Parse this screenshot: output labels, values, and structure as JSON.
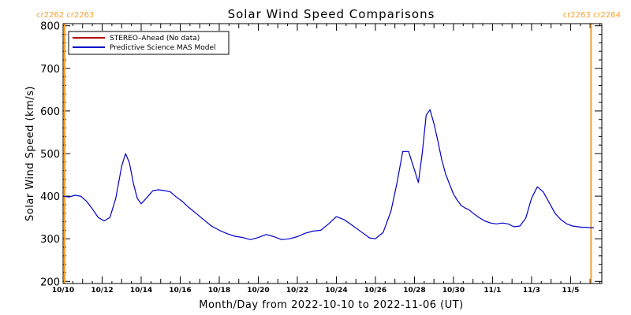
{
  "chart_data": {
    "type": "line",
    "title": "Solar Wind Speed Comparisons",
    "xlabel": "Month/Day from 2022-10-10 to 2022-11-06 (UT)",
    "ylabel": "Solar Wind Speed (km/s)",
    "xlim": [
      0,
      27.6
    ],
    "ylim": [
      195,
      805
    ],
    "yticks": [
      200,
      300,
      400,
      500,
      600,
      700,
      800
    ],
    "xticks": [
      {
        "x": 0,
        "label": "10/10"
      },
      {
        "x": 2,
        "label": "10/12"
      },
      {
        "x": 4,
        "label": "10/14"
      },
      {
        "x": 6,
        "label": "10/16"
      },
      {
        "x": 8,
        "label": "10/18"
      },
      {
        "x": 10,
        "label": "10/20"
      },
      {
        "x": 12,
        "label": "10/22"
      },
      {
        "x": 14,
        "label": "10/24"
      },
      {
        "x": 16,
        "label": "10/26"
      },
      {
        "x": 18,
        "label": "10/28"
      },
      {
        "x": 20,
        "label": "10/30"
      },
      {
        "x": 22,
        "label": "11/1"
      },
      {
        "x": 24,
        "label": "11/3"
      },
      {
        "x": 26,
        "label": "11/5"
      }
    ],
    "colors": {
      "stereo": "#b40000",
      "mas": "#0000c8",
      "carrington": "#f5a030"
    },
    "legend": {
      "position": "top-left",
      "entries": [
        {
          "label": "STEREO–Ahead (No data)",
          "color": "#b40000"
        },
        {
          "label": "Predictive Science MAS Model",
          "color": "#0000c8"
        }
      ]
    },
    "carrington_markers": [
      {
        "x": 0.08,
        "left_label": "cr2262",
        "right_label": "cr2263",
        "position": "left"
      },
      {
        "x": 27.05,
        "left_label": "cr2263",
        "right_label": "cr2264",
        "position": "right"
      }
    ],
    "series": [
      {
        "name": "Predictive Science MAS Model",
        "color": "#0000c8",
        "x": [
          0.0,
          0.3,
          0.6,
          0.9,
          1.2,
          1.5,
          1.8,
          2.1,
          2.4,
          2.7,
          3.0,
          3.2,
          3.4,
          3.6,
          3.8,
          4.0,
          4.3,
          4.6,
          4.9,
          5.2,
          5.5,
          5.8,
          6.1,
          6.4,
          6.8,
          7.2,
          7.6,
          8.0,
          8.4,
          8.8,
          9.2,
          9.6,
          10.0,
          10.4,
          10.8,
          11.2,
          11.6,
          12.0,
          12.4,
          12.8,
          13.2,
          13.6,
          14.0,
          14.4,
          14.8,
          15.1,
          15.4,
          15.7,
          16.0,
          16.4,
          16.8,
          17.1,
          17.4,
          17.7,
          18.0,
          18.2,
          18.4,
          18.6,
          18.8,
          19.0,
          19.2,
          19.4,
          19.6,
          19.8,
          20.0,
          20.2,
          20.4,
          20.6,
          20.8,
          21.0,
          21.3,
          21.6,
          21.9,
          22.2,
          22.5,
          22.8,
          23.1,
          23.4,
          23.7,
          24.0,
          24.3,
          24.6,
          24.9,
          25.2,
          25.5,
          25.8,
          26.1,
          26.4,
          26.6,
          26.8,
          27.0,
          27.2
        ],
        "y": [
          400,
          398,
          402,
          400,
          388,
          370,
          350,
          342,
          350,
          395,
          470,
          500,
          478,
          430,
          395,
          382,
          397,
          413,
          415,
          413,
          410,
          398,
          388,
          375,
          360,
          345,
          330,
          320,
          312,
          306,
          303,
          298,
          303,
          310,
          305,
          298,
          300,
          305,
          313,
          318,
          320,
          335,
          352,
          345,
          332,
          322,
          312,
          302,
          300,
          315,
          365,
          430,
          505,
          505,
          462,
          432,
          500,
          590,
          603,
          570,
          530,
          485,
          452,
          428,
          405,
          390,
          378,
          372,
          368,
          360,
          350,
          342,
          337,
          335,
          337,
          335,
          328,
          330,
          348,
          395,
          422,
          410,
          385,
          360,
          345,
          335,
          330,
          328,
          327,
          327,
          326,
          326
        ]
      }
    ]
  }
}
